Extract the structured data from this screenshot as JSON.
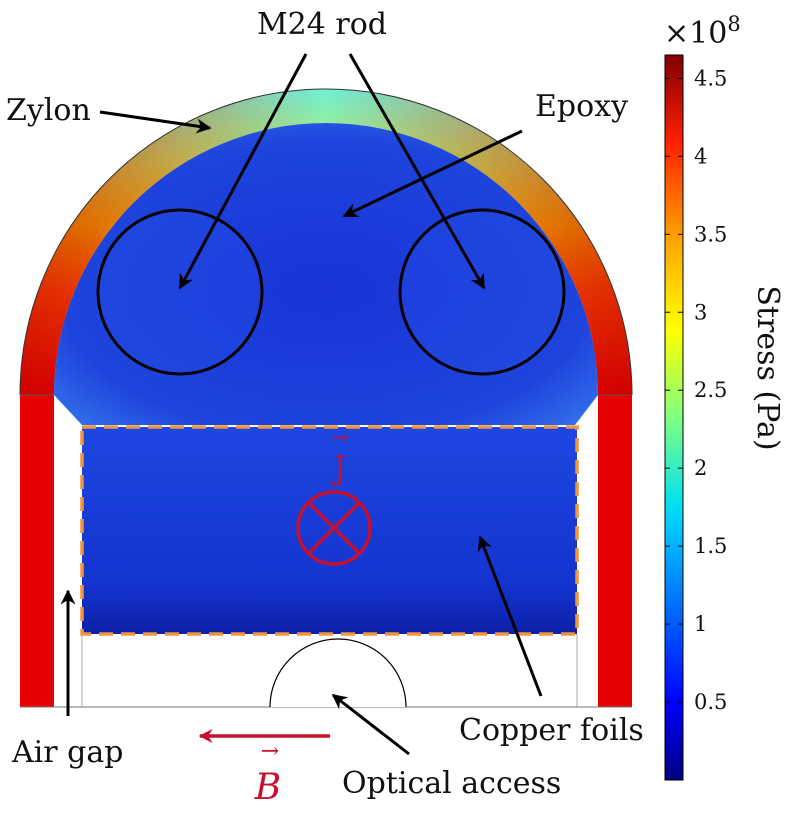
{
  "labels": {
    "m24_rod": "M24 rod",
    "zylon": "Zylon",
    "epoxy": "Epoxy",
    "copper_foils": "Copper foils",
    "air_gap": "Air gap",
    "optical_access": "Optical access",
    "current_density": "J",
    "magnetic_field": "B",
    "vector_arrow": "→"
  },
  "colorbar": {
    "title": "Stress (Pa)",
    "multiplier": "×10",
    "exponent": "8",
    "colormap": "jet",
    "ticks": [
      "0.5",
      "1",
      "1.5",
      "2",
      "2.5",
      "3",
      "3.5",
      "4",
      "4.5"
    ],
    "range": [
      0.0,
      4.65
    ]
  },
  "colors": {
    "current_symbol": "#c8102e",
    "field_arrow": "#c8102e",
    "foil_outline": "#f0963c",
    "zylon_side": "#e80000",
    "zylon_mid": "#f0d000",
    "zylon_top": "#70f0d8",
    "epoxy": "#1c40d8",
    "copper": "#1438d0"
  }
}
